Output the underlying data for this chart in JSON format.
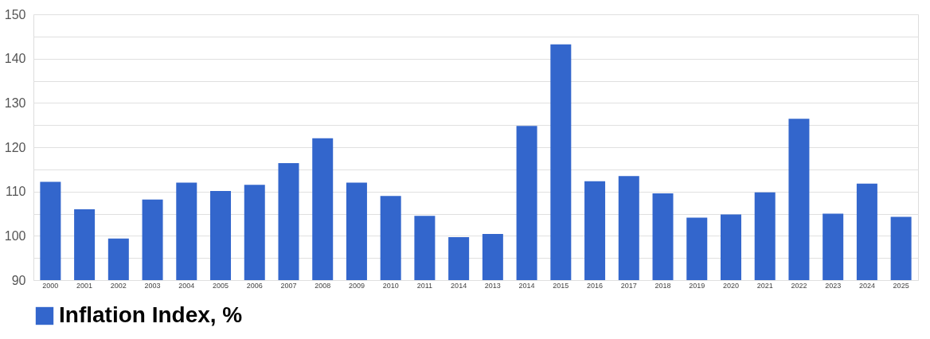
{
  "chart_data": {
    "type": "bar",
    "categories": [
      "2000",
      "2001",
      "2002",
      "2003",
      "2004",
      "2005",
      "2006",
      "2007",
      "2008",
      "2009",
      "2010",
      "2011",
      "2014",
      "2013",
      "2014",
      "2015",
      "2016",
      "2017",
      "2018",
      "2019",
      "2020",
      "2021",
      "2022",
      "2023",
      "2024",
      "2025"
    ],
    "series": [
      {
        "name": "Inflation Index, %",
        "color": "#3366cc",
        "values": [
          112.2,
          106,
          99.4,
          108.2,
          112,
          110.1,
          111.5,
          116.4,
          122,
          112,
          109,
          104.5,
          99.7,
          100.4,
          124.8,
          143.2,
          112.3,
          113.5,
          109.6,
          104.1,
          104.8,
          109.8,
          126.4,
          105,
          111.8,
          104.3
        ]
      }
    ],
    "ylim": [
      90,
      150
    ],
    "yticks": [
      90,
      {
        "value": 95,
        "label": null
      },
      100,
      {
        "value": 105,
        "label": null
      },
      110,
      {
        "value": 115,
        "label": null
      },
      120,
      {
        "value": 125,
        "label": null
      },
      130,
      {
        "value": 135,
        "label": null
      },
      140,
      {
        "value": 145,
        "label": null
      },
      150
    ],
    "grid": true,
    "legend": "bottom"
  }
}
